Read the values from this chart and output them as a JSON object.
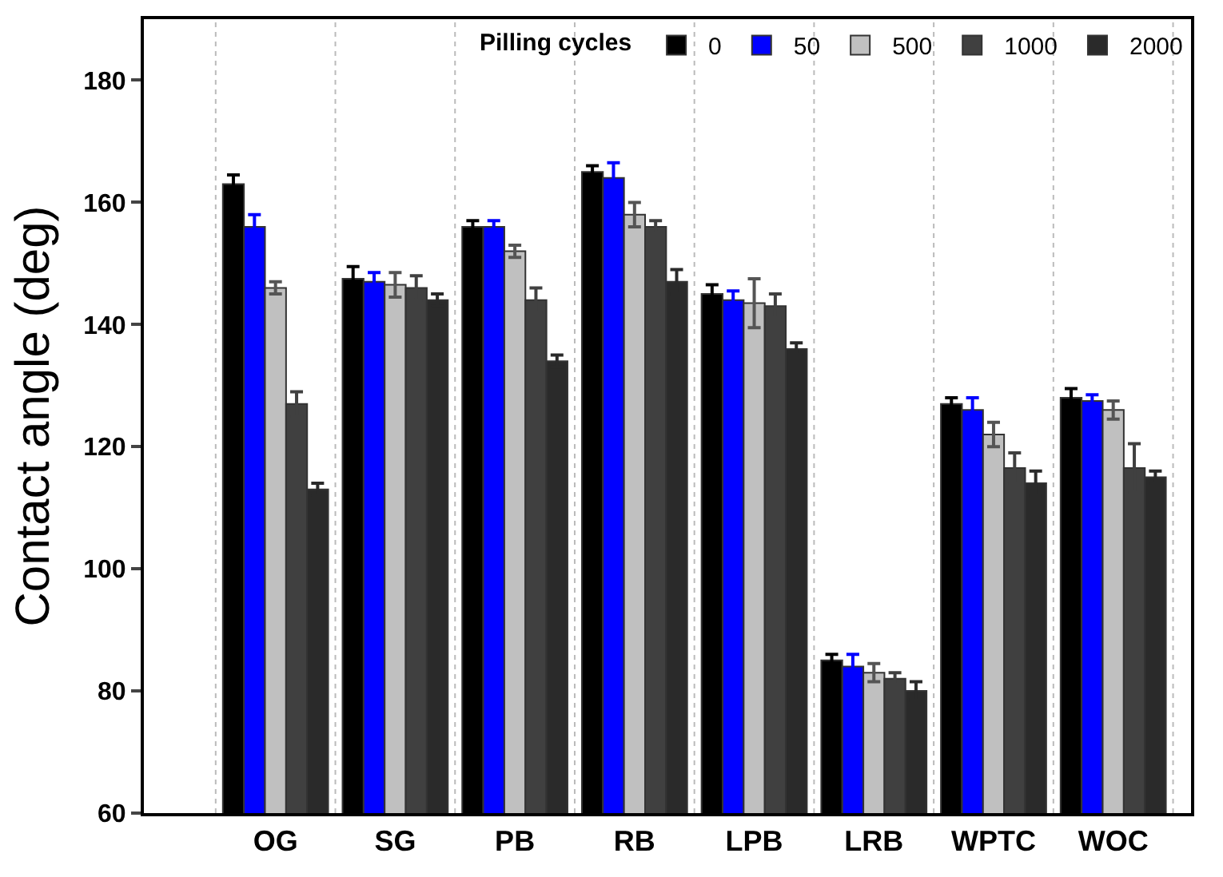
{
  "chart_data": {
    "type": "bar",
    "ylabel": "Contact angle (deg)",
    "legend_title": "Pilling cycles",
    "categories": [
      "OG",
      "SG",
      "PB",
      "RB",
      "LPB",
      "LRB",
      "WPTC",
      "WOC"
    ],
    "series": [
      {
        "name": "0",
        "color": "#000000",
        "values": [
          163,
          147.5,
          156,
          165,
          145,
          85,
          127,
          128
        ],
        "errors": [
          1.5,
          2,
          1,
          1,
          1.5,
          1,
          1,
          1.5
        ]
      },
      {
        "name": "50",
        "color": "#0000ff",
        "values": [
          156,
          147,
          156,
          164,
          144,
          84,
          126,
          127.5
        ],
        "errors": [
          2,
          1.5,
          1,
          2.5,
          1.5,
          2,
          2,
          1
        ]
      },
      {
        "name": "500",
        "color": "#c0c0c0",
        "values": [
          146,
          146.5,
          152,
          158,
          143.5,
          83,
          122,
          126
        ],
        "errors": [
          1,
          2,
          1,
          2,
          4,
          1.5,
          2,
          1.5
        ]
      },
      {
        "name": "1000",
        "color": "#404040",
        "values": [
          127,
          146,
          144,
          156,
          143,
          82,
          116.5,
          116.5
        ],
        "errors": [
          2,
          2,
          2,
          1,
          2,
          1,
          2.5,
          4
        ]
      },
      {
        "name": "2000",
        "color": "#2a2a2a",
        "values": [
          113,
          144,
          134,
          147,
          136,
          80,
          114,
          115
        ],
        "errors": [
          1,
          1,
          1,
          2,
          1,
          1.5,
          2,
          1
        ]
      }
    ],
    "ylim": [
      60,
      190
    ],
    "yticks": [
      60,
      80,
      100,
      120,
      140,
      160,
      180
    ],
    "grid": "x",
    "legend": "top right"
  }
}
